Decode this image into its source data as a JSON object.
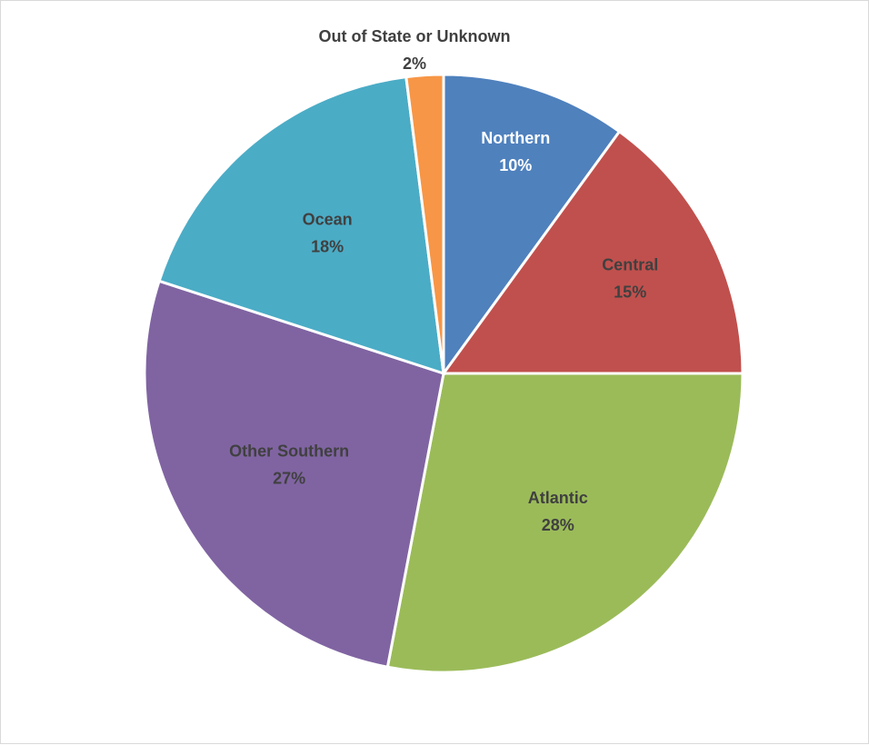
{
  "chart_data": {
    "type": "pie",
    "title": "",
    "categories": [
      "Northern",
      "Central",
      "Atlantic",
      "Other Southern",
      "Ocean",
      "Out of State or Unknown"
    ],
    "values": [
      10,
      15,
      28,
      27,
      18,
      2
    ],
    "percent_labels": [
      "10%",
      "15%",
      "28%",
      "27%",
      "18%",
      "2%"
    ],
    "start_angle": "12 o'clock",
    "direction": "clockwise",
    "legend": "none",
    "colors": [
      "#4f81bd",
      "#c0504d",
      "#9bbb59",
      "#8064a2",
      "#4bacc6",
      "#f79646"
    ],
    "label_colors": [
      "#ffffff",
      "#404040",
      "#404040",
      "#404040",
      "#404040",
      "#404040"
    ]
  }
}
